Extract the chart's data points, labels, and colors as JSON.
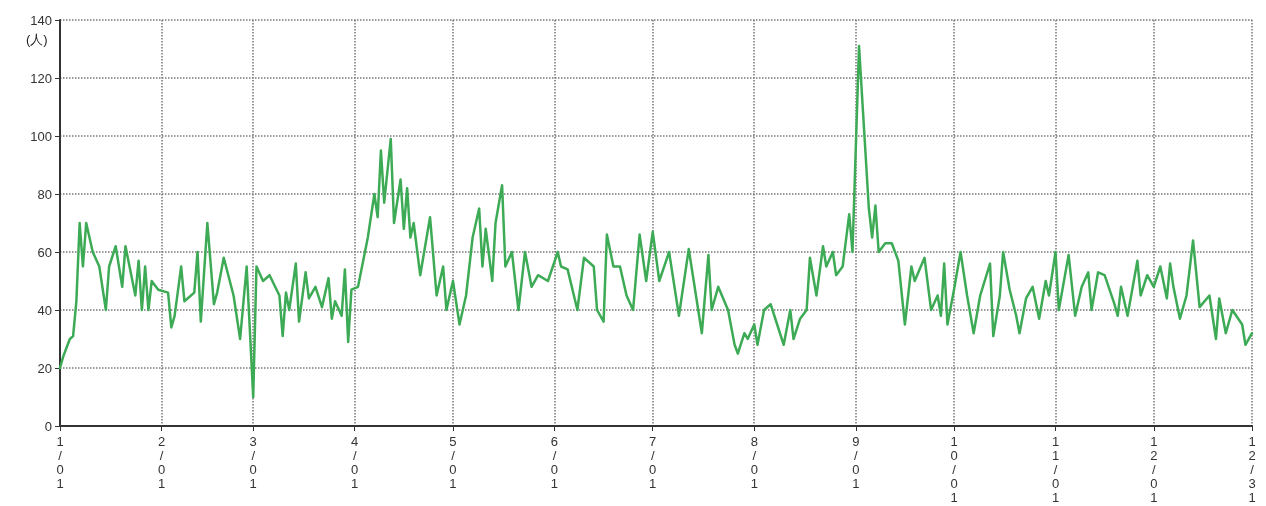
{
  "chart_data": {
    "type": "line",
    "ylabel": "(人)",
    "color": "#3daa55",
    "marker": "none",
    "line_style": "solid",
    "grid": true,
    "x": [
      "--01-01",
      "--01-02",
      "--01-04",
      "--01-05",
      "--01-06",
      "--01-07",
      "--01-08",
      "--01-09",
      "--01-11",
      "--01-13",
      "--01-15",
      "--01-16",
      "--01-18",
      "--01-20",
      "--01-21",
      "--01-24",
      "--01-25",
      "--01-26",
      "--01-27",
      "--01-28",
      "--01-29",
      "--01-31",
      "--02-03",
      "--02-04",
      "--02-05",
      "--02-07",
      "--02-08",
      "--02-11",
      "--02-12",
      "--02-13",
      "--02-15",
      "--02-17",
      "--02-18",
      "--02-20",
      "--02-23",
      "--02-25",
      "--02-27",
      "--03-01",
      "--03-02",
      "--03-04",
      "--03-06",
      "--03-09",
      "--03-10",
      "--03-11",
      "--03-12",
      "--03-14",
      "--03-15",
      "--03-17",
      "--03-18",
      "--03-20",
      "--03-22",
      "--03-24",
      "--03-25",
      "--03-26",
      "--03-28",
      "--03-29",
      "--03-30",
      "--03-31",
      "--04-02",
      "--04-05",
      "--04-07",
      "--04-08",
      "--04-09",
      "--04-10",
      "--04-12",
      "--04-13",
      "--04-15",
      "--04-16",
      "--04-17",
      "--04-18",
      "--04-19",
      "--04-21",
      "--04-24",
      "--04-26",
      "--04-28",
      "--04-29",
      "--05-01",
      "--05-03",
      "--05-05",
      "--05-07",
      "--05-09",
      "--05-10",
      "--05-11",
      "--05-13",
      "--05-14",
      "--05-16",
      "--05-17",
      "--05-19",
      "--05-21",
      "--05-23",
      "--05-25",
      "--05-27",
      "--05-30",
      "--06-02",
      "--06-03",
      "--06-05",
      "--06-08",
      "--06-10",
      "--06-13",
      "--06-14",
      "--06-16",
      "--06-17",
      "--06-19",
      "--06-21",
      "--06-23",
      "--06-25",
      "--06-27",
      "--06-29",
      "--07-01",
      "--07-03",
      "--07-06",
      "--07-09",
      "--07-12",
      "--07-16",
      "--07-18",
      "--07-19",
      "--07-21",
      "--07-24",
      "--07-26",
      "--07-27",
      "--07-29",
      "--07-30",
      "--08-01",
      "--08-02",
      "--08-04",
      "--08-06",
      "--08-08",
      "--08-10",
      "--08-12",
      "--08-13",
      "--08-15",
      "--08-17",
      "--08-18",
      "--08-20",
      "--08-22",
      "--08-23",
      "--08-25",
      "--08-26",
      "--08-28",
      "--08-30",
      "--08-31",
      "--09-02",
      "--09-05",
      "--09-06",
      "--09-07",
      "--09-08",
      "--09-10",
      "--09-12",
      "--09-14",
      "--09-16",
      "--09-18",
      "--09-19",
      "--09-22",
      "--09-24",
      "--09-26",
      "--09-27",
      "--09-28",
      "--09-29",
      "--10-01",
      "--10-03",
      "--10-05",
      "--10-07",
      "--10-09",
      "--10-12",
      "--10-13",
      "--10-15",
      "--10-16",
      "--10-18",
      "--10-20",
      "--10-21",
      "--10-23",
      "--10-25",
      "--10-27",
      "--10-29",
      "--10-30",
      "--11-01",
      "--11-02",
      "--11-05",
      "--11-07",
      "--11-09",
      "--11-11",
      "--11-12",
      "--11-14",
      "--11-16",
      "--11-19",
      "--11-20",
      "--11-21",
      "--11-23",
      "--11-26",
      "--11-27",
      "--11-29",
      "--12-01",
      "--12-03",
      "--12-05",
      "--12-06",
      "--12-07",
      "--12-09",
      "--12-11",
      "--12-13",
      "--12-15",
      "--12-18",
      "--12-20",
      "--12-21",
      "--12-23",
      "--12-25",
      "--12-28",
      "--12-29",
      "--12-31"
    ],
    "values": [
      20,
      24,
      30,
      31,
      43,
      70,
      55,
      70,
      60,
      55,
      40,
      55,
      62,
      48,
      62,
      45,
      57,
      40,
      55,
      40,
      50,
      47,
      46,
      34,
      38,
      55,
      43,
      46,
      60,
      36,
      70,
      42,
      46,
      58,
      45,
      30,
      55,
      10,
      55,
      50,
      52,
      45,
      31,
      46,
      40,
      56,
      36,
      53,
      44,
      48,
      41,
      51,
      37,
      43,
      38,
      54,
      29,
      47,
      48,
      65,
      80,
      72,
      95,
      77,
      99,
      70,
      85,
      68,
      82,
      65,
      70,
      52,
      72,
      45,
      55,
      40,
      50,
      35,
      45,
      65,
      75,
      55,
      68,
      50,
      70,
      83,
      55,
      60,
      40,
      60,
      48,
      52,
      50,
      60,
      55,
      54,
      40,
      58,
      55,
      40,
      36,
      66,
      55,
      55,
      45,
      40,
      66,
      50,
      67,
      50,
      60,
      38,
      61,
      32,
      59,
      40,
      48,
      40,
      28,
      25,
      32,
      30,
      35,
      28,
      40,
      42,
      35,
      28,
      40,
      30,
      37,
      40,
      58,
      45,
      62,
      55,
      60,
      52,
      55,
      73,
      60,
      131,
      75,
      65,
      76,
      60,
      63,
      63,
      57,
      35,
      55,
      50,
      58,
      40,
      45,
      38,
      56,
      35,
      47,
      60,
      45,
      32,
      45,
      56,
      31,
      45,
      60,
      47,
      38,
      32,
      44,
      48,
      37,
      50,
      45,
      60,
      40,
      59,
      38,
      48,
      53,
      40,
      53,
      52,
      42,
      38,
      48,
      38,
      57,
      45,
      52,
      48,
      55,
      44,
      56,
      48,
      37,
      45,
      64,
      41,
      45,
      30,
      44,
      32,
      40,
      35,
      28,
      32
    ],
    "xlim": [
      "--01-01",
      "--12-31"
    ],
    "xticks": [
      {
        "value": "--01-01",
        "label": "1/01"
      },
      {
        "value": "--02-01",
        "label": "2/01"
      },
      {
        "value": "--03-01",
        "label": "3/01"
      },
      {
        "value": "--04-01",
        "label": "4/01"
      },
      {
        "value": "--05-01",
        "label": "5/01"
      },
      {
        "value": "--06-01",
        "label": "6/01"
      },
      {
        "value": "--07-01",
        "label": "7/01"
      },
      {
        "value": "--08-01",
        "label": "8/01"
      },
      {
        "value": "--09-01",
        "label": "9/01"
      },
      {
        "value": "--10-01",
        "label": "10/01"
      },
      {
        "value": "--11-01",
        "label": "11/01"
      },
      {
        "value": "--12-01",
        "label": "12/01"
      },
      {
        "value": "--12-31",
        "label": "12/31"
      }
    ],
    "ylim": [
      0,
      140
    ],
    "yticks": [
      0,
      20,
      40,
      60,
      80,
      100,
      120,
      140
    ]
  }
}
